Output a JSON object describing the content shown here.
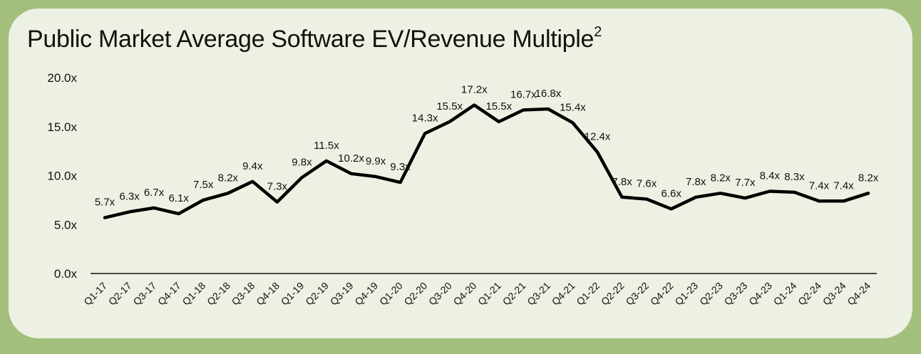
{
  "chart_data": {
    "type": "line",
    "title": "Public Market Average Software EV/Revenue Multiple",
    "title_superscript": "2",
    "xlabel": "",
    "ylabel": "",
    "ylim": [
      0,
      20
    ],
    "yticks": [
      "0.0x",
      "5.0x",
      "10.0x",
      "15.0x",
      "20.0x"
    ],
    "ytick_values": [
      0,
      5,
      10,
      15,
      20
    ],
    "categories": [
      "Q1-17",
      "Q2-17",
      "Q3-17",
      "Q4-17",
      "Q1-18",
      "Q2-18",
      "Q3-18",
      "Q4-18",
      "Q1-19",
      "Q2-19",
      "Q3-19",
      "Q4-19",
      "Q1-20",
      "Q2-20",
      "Q3-20",
      "Q4-20",
      "Q1-21",
      "Q2-21",
      "Q3-21",
      "Q4-21",
      "Q1-22",
      "Q2-22",
      "Q3-22",
      "Q4-22",
      "Q1-23",
      "Q2-23",
      "Q3-23",
      "Q4-23",
      "Q1-24",
      "Q2-24",
      "Q3-24",
      "Q4-24"
    ],
    "values": [
      5.7,
      6.3,
      6.7,
      6.1,
      7.5,
      8.2,
      9.4,
      7.3,
      9.8,
      11.5,
      10.2,
      9.9,
      9.3,
      14.3,
      15.5,
      17.2,
      15.5,
      16.7,
      16.8,
      15.4,
      12.4,
      7.8,
      7.6,
      6.6,
      7.8,
      8.2,
      7.7,
      8.4,
      8.3,
      7.4,
      7.4,
      8.2
    ],
    "labels": [
      "5.7x",
      "6.3x",
      "6.7x",
      "6.1x",
      "7.5x",
      "8.2x",
      "9.4x",
      "7.3x",
      "9.8x",
      "11.5x",
      "10.2x",
      "9.9x",
      "9.3x",
      "14.3x",
      "15.5x",
      "17.2x",
      "15.5x",
      "16.7x",
      "16.8x",
      "15.4x",
      "12.4x",
      "7.8x",
      "7.6x",
      "6.6x",
      "7.8x",
      "8.2x",
      "7.7x",
      "8.4x",
      "8.3x",
      "7.4x",
      "7.4x",
      "8.2x"
    ],
    "grid": false,
    "line_color": "#000000"
  },
  "colors": {
    "background": "#a3bf7c",
    "card": "#edf1e3",
    "line": "#000000"
  }
}
